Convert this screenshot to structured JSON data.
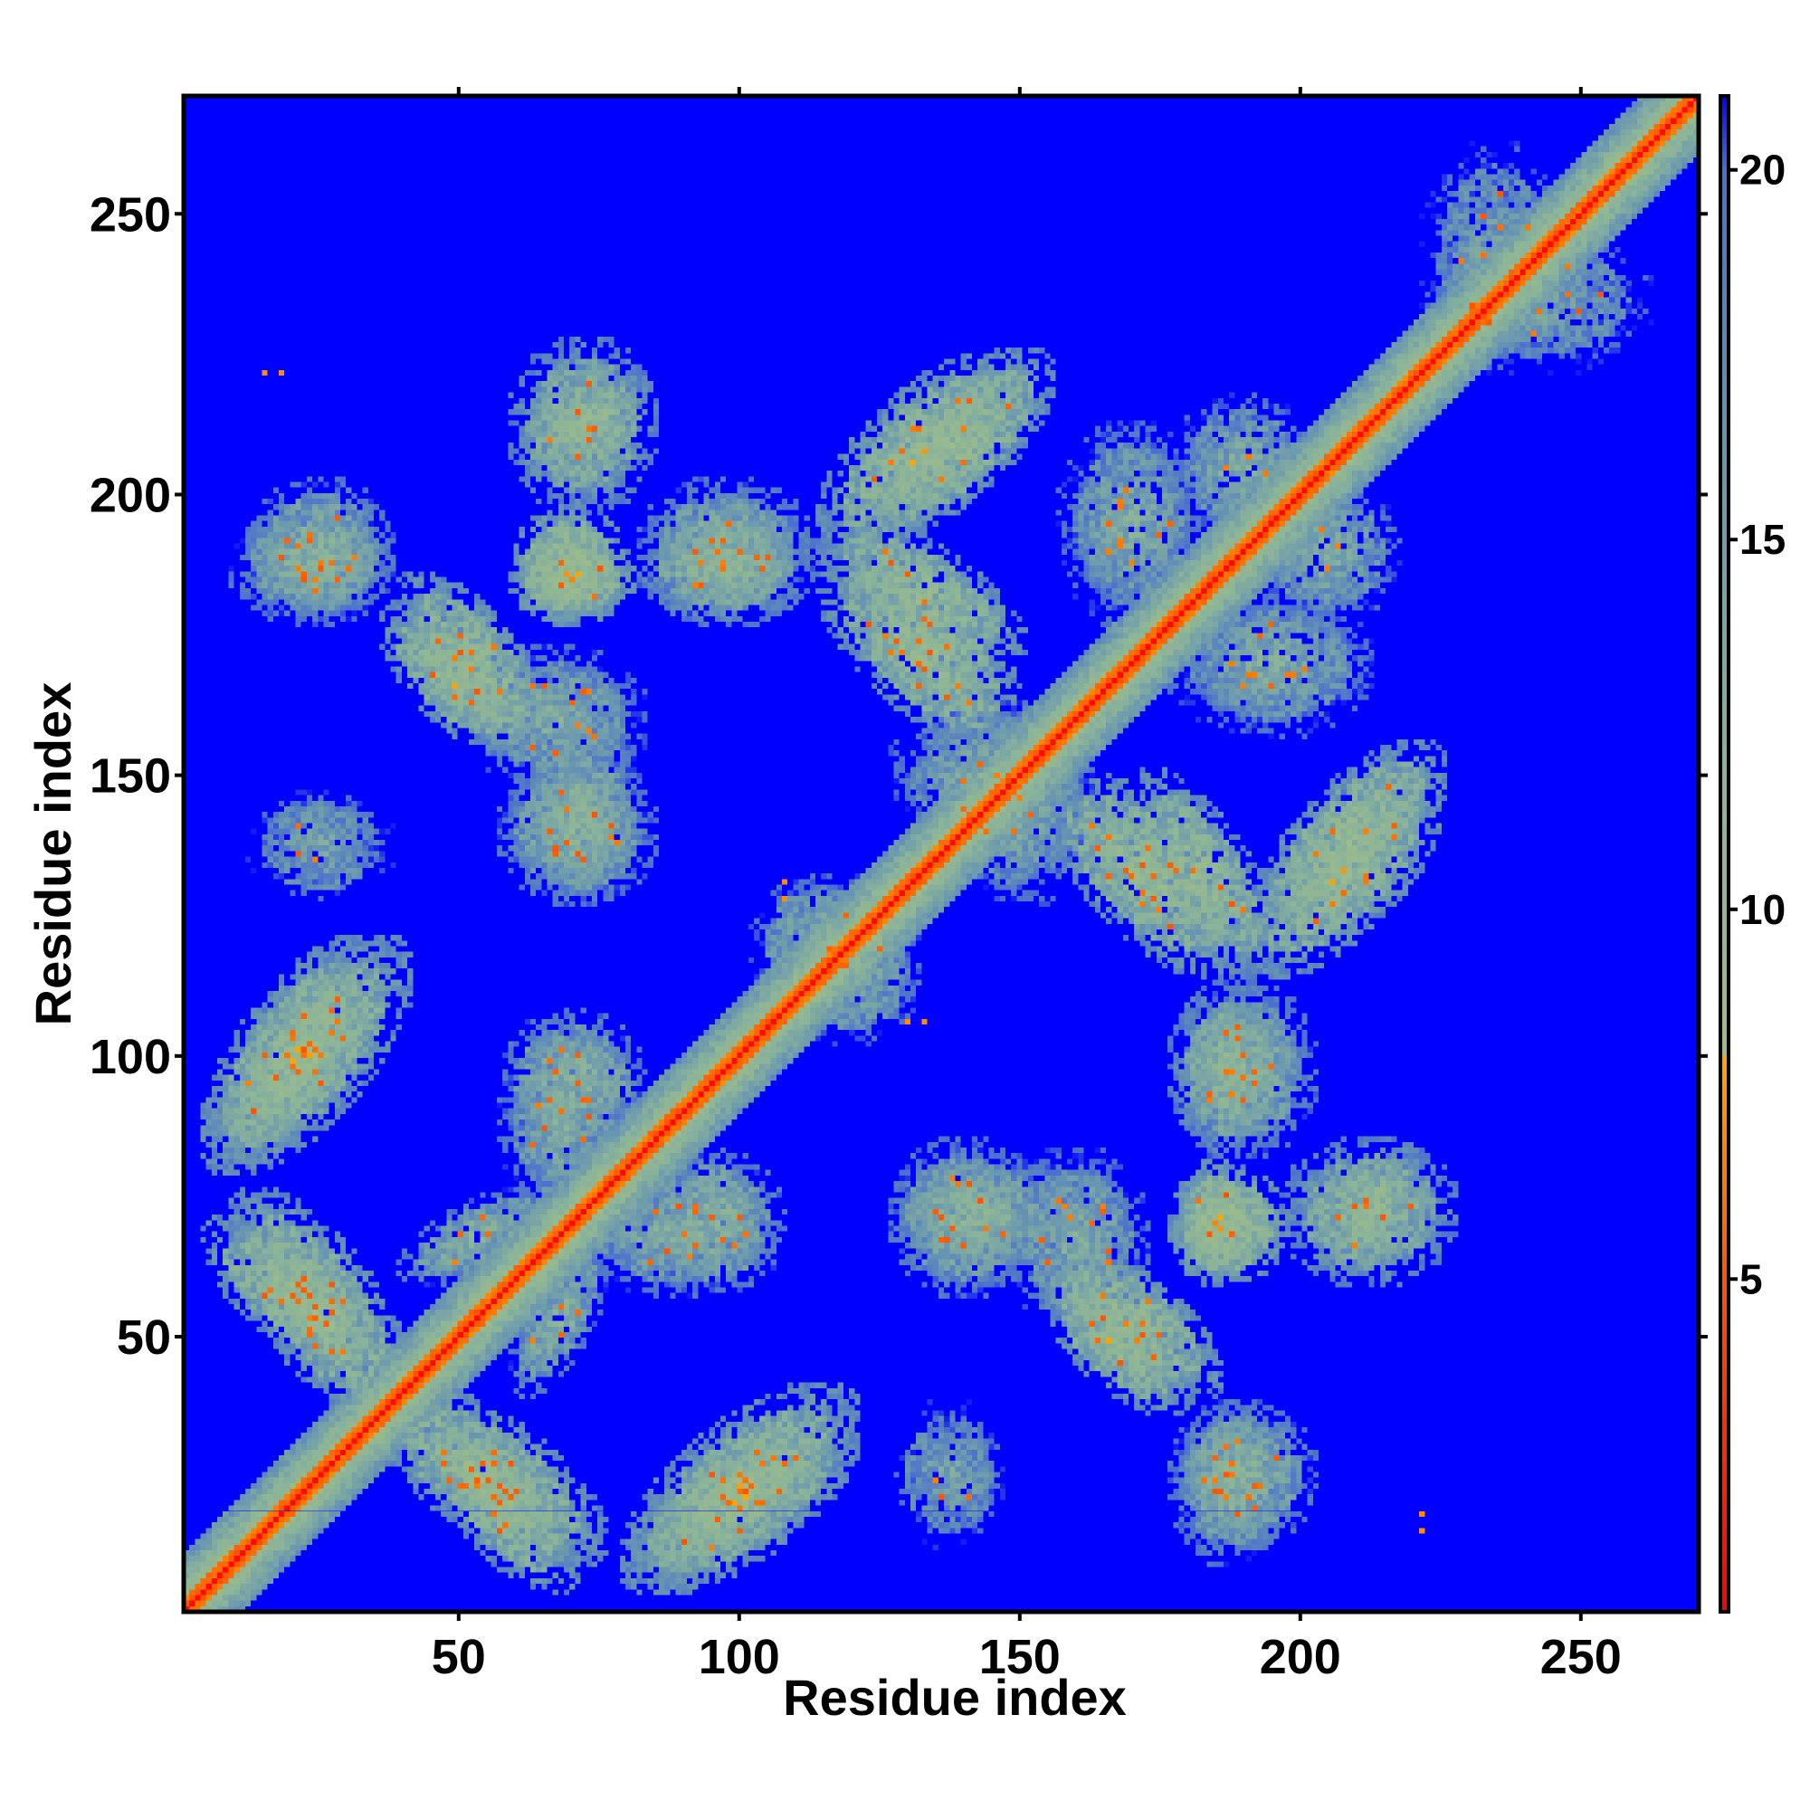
{
  "chart_data": {
    "type": "heatmap",
    "title": "",
    "xlabel": "Residue index",
    "ylabel": "Residue index",
    "n_residues": 271,
    "xlim": [
      1,
      271
    ],
    "ylim": [
      1,
      271
    ],
    "x_ticks": [
      50,
      100,
      150,
      200,
      250
    ],
    "y_ticks": [
      50,
      100,
      150,
      200,
      250
    ],
    "colorbar": {
      "min": 0.5,
      "max": 21,
      "ticks": [
        5,
        10,
        15,
        20
      ],
      "stops": [
        {
          "value": 0.5,
          "color": "#ff0000"
        },
        {
          "value": 4.5,
          "color": "#ff4a00"
        },
        {
          "value": 8.0,
          "color": "#ffa500"
        },
        {
          "value": 8.05,
          "color": "#9ebc88"
        },
        {
          "value": 12.0,
          "color": "#8ab39a"
        },
        {
          "value": 16.0,
          "color": "#6a97b0"
        },
        {
          "value": 20.0,
          "color": "#4a6fd0"
        },
        {
          "value": 21.0,
          "color": "#0000ff"
        }
      ]
    },
    "background_color": "#0000ff",
    "diagonal_band": {
      "core_distance": 3.8,
      "band_half_width": 10
    },
    "contact_blocks": [
      {
        "x": [
          5,
          35
        ],
        "y": [
          80,
          120
        ],
        "orientation": "parallel",
        "value": 10
      },
      {
        "x": [
          5,
          35
        ],
        "y": [
          45,
          70
        ],
        "orientation": "anti",
        "value": 10
      },
      {
        "x": [
          35,
          75
        ],
        "y": [
          10,
          40
        ],
        "orientation": "anti",
        "value": 10
      },
      {
        "x": [
          80,
          120
        ],
        "y": [
          5,
          40
        ],
        "orientation": "parallel",
        "value": 10
      },
      {
        "x": [
          40,
          65
        ],
        "y": [
          60,
          75
        ],
        "orientation": "parallel",
        "value": 12
      },
      {
        "x": [
          60,
          80
        ],
        "y": [
          85,
          105
        ],
        "orientation": "blob",
        "value": 12
      },
      {
        "x": [
          75,
          100
        ],
        "y": [
          60,
          75
        ],
        "orientation": "blob",
        "value": 13
      },
      {
        "x": [
          12,
          35
        ],
        "y": [
          180,
          195
        ],
        "orientation": "blob",
        "value": 12
      },
      {
        "x": [
          37,
          60
        ],
        "y": [
          155,
          180
        ],
        "orientation": "anti",
        "value": 10
      },
      {
        "x": [
          62,
          77
        ],
        "y": [
          180,
          195
        ],
        "orientation": "blob",
        "value": 9
      },
      {
        "x": [
          62,
          80
        ],
        "y": [
          130,
          155
        ],
        "orientation": "blob",
        "value": 12
      },
      {
        "x": [
          62,
          82
        ],
        "y": [
          205,
          220
        ],
        "orientation": "parallel",
        "value": 10
      },
      {
        "x": [
          85,
          110
        ],
        "y": [
          180,
          195
        ],
        "orientation": "blob",
        "value": 11
      },
      {
        "x": [
          115,
          150
        ],
        "y": [
          170,
          195
        ],
        "orientation": "anti",
        "value": 10
      },
      {
        "x": [
          125,
          155
        ],
        "y": [
          195,
          225
        ],
        "orientation": "parallel",
        "value": 10
      },
      {
        "x": [
          155,
          190
        ],
        "y": [
          115,
          150
        ],
        "orientation": "anti",
        "value": 10
      },
      {
        "x": [
          190,
          225
        ],
        "y": [
          115,
          150
        ],
        "orientation": "parallel",
        "value": 10
      },
      {
        "x": [
          180,
          200
        ],
        "y": [
          85,
          110
        ],
        "orientation": "blob",
        "value": 12
      },
      {
        "x": [
          155,
          185
        ],
        "y": [
          40,
          65
        ],
        "orientation": "anti",
        "value": 10
      },
      {
        "x": [
          180,
          190
        ],
        "y": [
          62,
          78
        ],
        "orientation": "blob",
        "value": 9
      },
      {
        "x": [
          200,
          225
        ],
        "y": [
          62,
          82
        ],
        "orientation": "blob",
        "value": 11
      },
      {
        "x": [
          130,
          150
        ],
        "y": [
          60,
          82
        ],
        "orientation": "blob",
        "value": 12
      },
      {
        "x": [
          180,
          200
        ],
        "y": [
          15,
          35
        ],
        "orientation": "blob",
        "value": 12
      },
      {
        "x": [
          160,
          180
        ],
        "y": [
          180,
          210
        ],
        "orientation": "blob",
        "value": 13
      },
      {
        "x": [
          195,
          215
        ],
        "y": [
          180,
          200
        ],
        "orientation": "blob",
        "value": 13
      },
      {
        "x": [
          110,
          130
        ],
        "y": [
          105,
          125
        ],
        "orientation": "blob",
        "value": 13
      },
      {
        "x": [
          140,
          160
        ],
        "y": [
          130,
          160
        ],
        "orientation": "blob",
        "value": 13
      },
      {
        "x": [
          150,
          170
        ],
        "y": [
          55,
          80
        ],
        "orientation": "blob",
        "value": 13
      },
      {
        "x": [
          130,
          145
        ],
        "y": [
          15,
          35
        ],
        "orientation": "blob",
        "value": 14
      },
      {
        "x": [
          225,
          245
        ],
        "y": [
          225,
          260
        ],
        "orientation": "blob",
        "value": 14
      }
    ],
    "isolated_points": [
      {
        "x": 15,
        "y": 222,
        "value": 7
      },
      {
        "x": 18,
        "y": 222,
        "value": 7
      },
      {
        "x": 108,
        "y": 131,
        "value": 7
      },
      {
        "x": 108,
        "y": 128,
        "value": 7
      },
      {
        "x": 130,
        "y": 106,
        "value": 7
      },
      {
        "x": 133,
        "y": 106,
        "value": 7
      },
      {
        "x": 222,
        "y": 15,
        "value": 7
      },
      {
        "x": 222,
        "y": 18,
        "value": 7
      }
    ]
  }
}
